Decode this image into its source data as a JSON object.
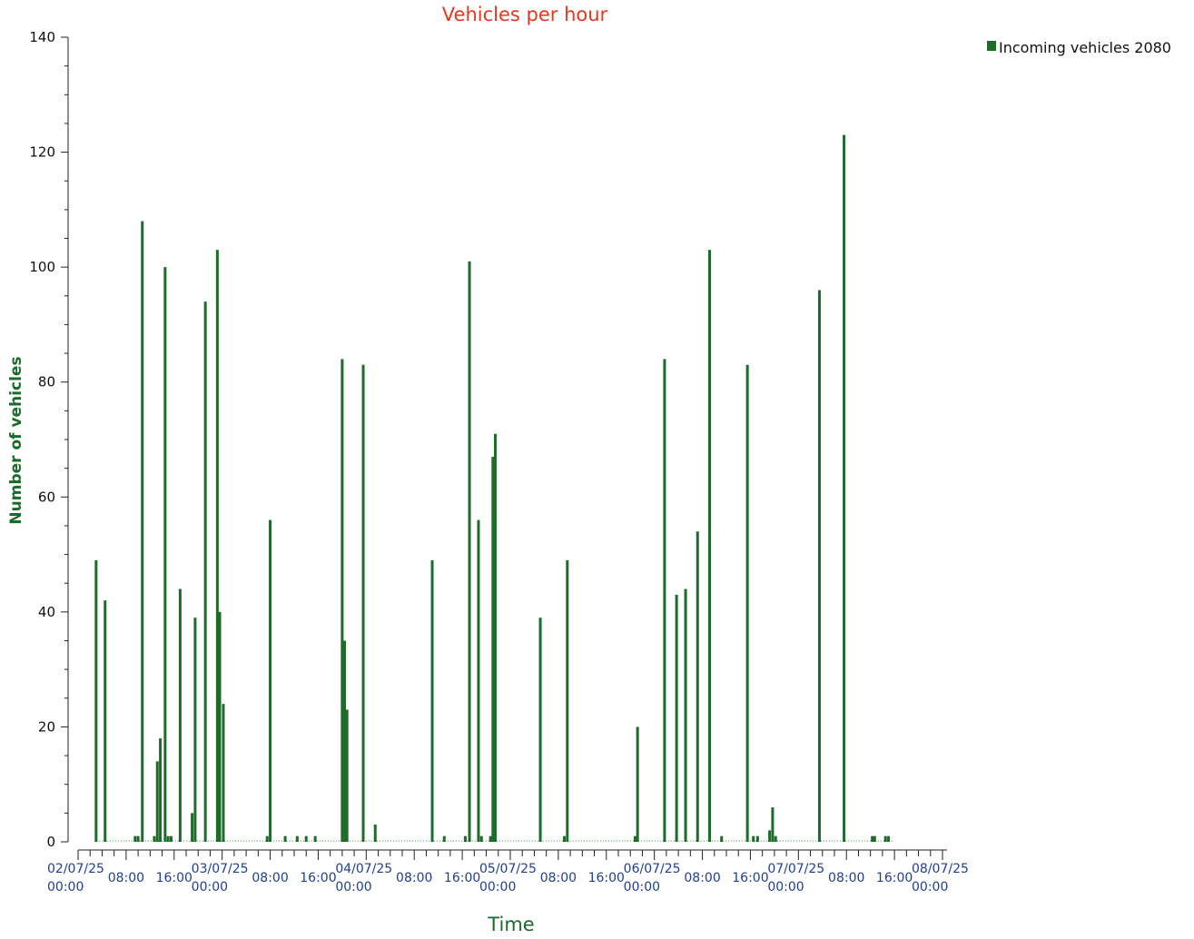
{
  "chart_data": {
    "type": "bar",
    "title": "Vehicles per hour",
    "xlabel": "Time",
    "ylabel": "Number of vehicles",
    "ylim": [
      0,
      140
    ],
    "yticks": [
      0,
      20,
      40,
      60,
      80,
      100,
      120,
      140
    ],
    "xlim_hours": [
      0,
      144
    ],
    "x_unit": "hours from 02/07/25 00:00",
    "xtick_labels": [
      {
        "hour": 0,
        "lines": [
          "02/07/25",
          "00:00"
        ]
      },
      {
        "hour": 8,
        "lines": [
          "08:00"
        ]
      },
      {
        "hour": 16,
        "lines": [
          "16:00"
        ]
      },
      {
        "hour": 24,
        "lines": [
          "03/07/25",
          "00:00"
        ]
      },
      {
        "hour": 32,
        "lines": [
          "08:00"
        ]
      },
      {
        "hour": 40,
        "lines": [
          "16:00"
        ]
      },
      {
        "hour": 48,
        "lines": [
          "04/07/25",
          "00:00"
        ]
      },
      {
        "hour": 56,
        "lines": [
          "08:00"
        ]
      },
      {
        "hour": 64,
        "lines": [
          "16:00"
        ]
      },
      {
        "hour": 72,
        "lines": [
          "05/07/25",
          "00:00"
        ]
      },
      {
        "hour": 80,
        "lines": [
          "08:00"
        ]
      },
      {
        "hour": 88,
        "lines": [
          "16:00"
        ]
      },
      {
        "hour": 96,
        "lines": [
          "06/07/25",
          "00:00"
        ]
      },
      {
        "hour": 104,
        "lines": [
          "08:00"
        ]
      },
      {
        "hour": 112,
        "lines": [
          "16:00"
        ]
      },
      {
        "hour": 120,
        "lines": [
          "07/07/25",
          "00:00"
        ]
      },
      {
        "hour": 128,
        "lines": [
          "08:00"
        ]
      },
      {
        "hour": 136,
        "lines": [
          "16:00"
        ]
      },
      {
        "hour": 144,
        "lines": [
          "08/07/25",
          "00:00"
        ]
      }
    ],
    "legend": {
      "position": "top-right"
    },
    "series": [
      {
        "name": "Incoming vehicles 2080",
        "color": "#1e6b2a",
        "points": [
          [
            3,
            49
          ],
          [
            4.5,
            42
          ],
          [
            9.5,
            1
          ],
          [
            10,
            1
          ],
          [
            10.7,
            108
          ],
          [
            12.7,
            1
          ],
          [
            13.2,
            14
          ],
          [
            13.7,
            18
          ],
          [
            14.5,
            100
          ],
          [
            15,
            1
          ],
          [
            15.5,
            1
          ],
          [
            17,
            44
          ],
          [
            19,
            5
          ],
          [
            19.5,
            39
          ],
          [
            21.2,
            94
          ],
          [
            23.2,
            103
          ],
          [
            23.6,
            40
          ],
          [
            24.2,
            24
          ],
          [
            31.5,
            1
          ],
          [
            32,
            56
          ],
          [
            34.5,
            1
          ],
          [
            36.5,
            1
          ],
          [
            38,
            1
          ],
          [
            39.5,
            1
          ],
          [
            44,
            84
          ],
          [
            44.4,
            35
          ],
          [
            44.8,
            23
          ],
          [
            47.5,
            83
          ],
          [
            49.5,
            3
          ],
          [
            59,
            49
          ],
          [
            61,
            1
          ],
          [
            64.5,
            1
          ],
          [
            65.2,
            101
          ],
          [
            66.7,
            56
          ],
          [
            67.2,
            1
          ],
          [
            68.7,
            1
          ],
          [
            69.1,
            67
          ],
          [
            69.5,
            71
          ],
          [
            77,
            39
          ],
          [
            81,
            1
          ],
          [
            81.5,
            49
          ],
          [
            92.8,
            1
          ],
          [
            93.2,
            20
          ],
          [
            97.7,
            84
          ],
          [
            99.7,
            43
          ],
          [
            101.2,
            44
          ],
          [
            103.2,
            54
          ],
          [
            105.2,
            103
          ],
          [
            107.2,
            1
          ],
          [
            111.5,
            83
          ],
          [
            112.5,
            1
          ],
          [
            113.2,
            1
          ],
          [
            115.2,
            2
          ],
          [
            115.7,
            6
          ],
          [
            116.2,
            1
          ],
          [
            123.5,
            96
          ],
          [
            127.6,
            123
          ],
          [
            132.3,
            1
          ],
          [
            132.7,
            1
          ],
          [
            134.5,
            1
          ],
          [
            135,
            1
          ]
        ]
      }
    ]
  }
}
